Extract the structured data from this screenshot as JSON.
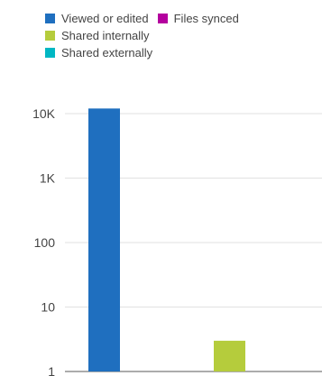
{
  "chart_data": {
    "type": "bar",
    "yscale": "log",
    "ylim": [
      1,
      10000
    ],
    "y_ticks": [
      {
        "value": 10000,
        "label": "10K"
      },
      {
        "value": 1000,
        "label": "1K"
      },
      {
        "value": 100,
        "label": "100"
      },
      {
        "value": 10,
        "label": "10"
      },
      {
        "value": 1,
        "label": "1"
      }
    ],
    "grid": true,
    "legend": "top",
    "series": [
      {
        "name": "Viewed or edited",
        "color": "#1f6fbf",
        "value": 12000
      },
      {
        "name": "Files synced",
        "color": "#b4009e",
        "value": 0
      },
      {
        "name": "Shared internally",
        "color": "#b5cc3c",
        "value": 3
      },
      {
        "name": "Shared externally",
        "color": "#00b7c3",
        "value": 0
      }
    ]
  }
}
